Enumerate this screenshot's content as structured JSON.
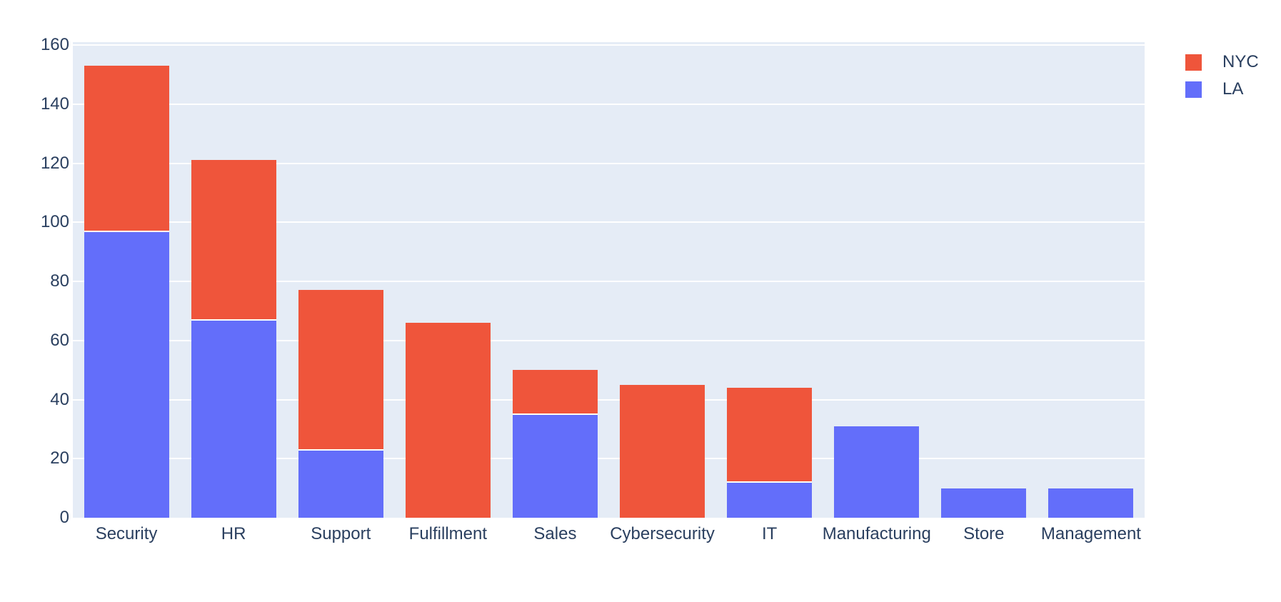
{
  "chart_data": {
    "type": "bar",
    "mode": "stacked",
    "title": "",
    "xlabel": "",
    "ylabel": "",
    "categories": [
      "Security",
      "HR",
      "Support",
      "Fulfillment",
      "Sales",
      "Cybersecurity",
      "IT",
      "Manufacturing",
      "Store",
      "Management"
    ],
    "series": [
      {
        "name": "NYC",
        "color": "#EF553B",
        "values": [
          56,
          54,
          54,
          66,
          15,
          45,
          32,
          0,
          0,
          0
        ]
      },
      {
        "name": "LA",
        "color": "#636EFA",
        "values": [
          97,
          67,
          23,
          0,
          35,
          0,
          12,
          31,
          10,
          10
        ]
      }
    ],
    "stack_order_note": "last series in list is drawn at the bottom of the stack; legend shows list order top-to-bottom",
    "totals": [
      153,
      121,
      77,
      66,
      50,
      45,
      44,
      31,
      10,
      10
    ],
    "ylim": [
      0,
      161
    ],
    "yticks": [
      0,
      20,
      40,
      60,
      80,
      100,
      120,
      140,
      160
    ],
    "grid": true,
    "legend_position": "top-right-outside",
    "colors": {
      "plot_background": "#E5ECF6",
      "gridline": "#FFFFFF",
      "segment_divider": "#FFFFFF",
      "text": "#2A3F5F"
    }
  }
}
